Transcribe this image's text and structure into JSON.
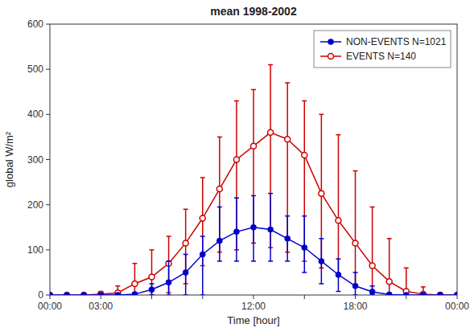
{
  "chart_data": {
    "type": "line",
    "title": "mean 1998-2002",
    "x_label": "Time [hour]",
    "y_label": "global W/m²",
    "xlim": [
      0,
      24
    ],
    "ylim": [
      0,
      600
    ],
    "xticks": [
      {
        "value": 0,
        "label": "00:00"
      },
      {
        "value": 3,
        "label": "03:00"
      },
      {
        "value": 6,
        "label": null
      },
      {
        "value": 9,
        "label": null
      },
      {
        "value": 12,
        "label": "12:00"
      },
      {
        "value": 15,
        "label": null
      },
      {
        "value": 18,
        "label": "18:00"
      },
      {
        "value": 21,
        "label": null
      },
      {
        "value": 24,
        "label": "00:00"
      }
    ],
    "yticks": [
      0,
      100,
      200,
      300,
      400,
      500,
      600
    ],
    "grid": false,
    "legend": "upper right",
    "x": [
      0,
      1,
      2,
      3,
      4,
      5,
      6,
      7,
      8,
      9,
      10,
      11,
      12,
      13,
      14,
      15,
      16,
      17,
      18,
      19,
      20,
      21,
      22,
      23,
      24
    ],
    "series": [
      {
        "name": "NON-EVENTS N=1021",
        "color": "#0000cc",
        "marker": "circle",
        "line_style": "solid",
        "values": [
          0,
          0,
          0,
          0,
          0,
          2,
          12,
          28,
          50,
          90,
          120,
          140,
          150,
          145,
          125,
          105,
          75,
          45,
          20,
          7,
          1,
          0,
          0,
          0,
          0
        ],
        "upper": [
          0,
          0,
          0,
          0,
          0,
          5,
          25,
          75,
          90,
          130,
          195,
          215,
          220,
          225,
          175,
          175,
          125,
          80,
          50,
          20,
          5,
          0,
          0,
          0,
          0
        ],
        "lower": [
          0,
          0,
          0,
          0,
          0,
          0,
          0,
          0,
          0,
          0,
          75,
          75,
          75,
          75,
          75,
          50,
          25,
          8,
          0,
          0,
          0,
          0,
          0,
          0,
          0
        ]
      },
      {
        "name": "EVENTS N=140",
        "color": "#cc0000",
        "marker": "open-circle",
        "line_style": "solid",
        "values": [
          0,
          0,
          0,
          2,
          5,
          25,
          40,
          70,
          115,
          170,
          235,
          300,
          330,
          360,
          345,
          310,
          225,
          165,
          115,
          65,
          30,
          8,
          2,
          0,
          0
        ],
        "upper": [
          0,
          0,
          0,
          8,
          20,
          70,
          100,
          130,
          190,
          260,
          350,
          430,
          455,
          510,
          470,
          430,
          400,
          355,
          275,
          195,
          125,
          60,
          18,
          5,
          0
        ],
        "lower": [
          0,
          0,
          0,
          0,
          0,
          0,
          0,
          5,
          25,
          65,
          95,
          100,
          115,
          105,
          95,
          75,
          60,
          45,
          22,
          8,
          0,
          0,
          0,
          0,
          0
        ]
      }
    ]
  }
}
